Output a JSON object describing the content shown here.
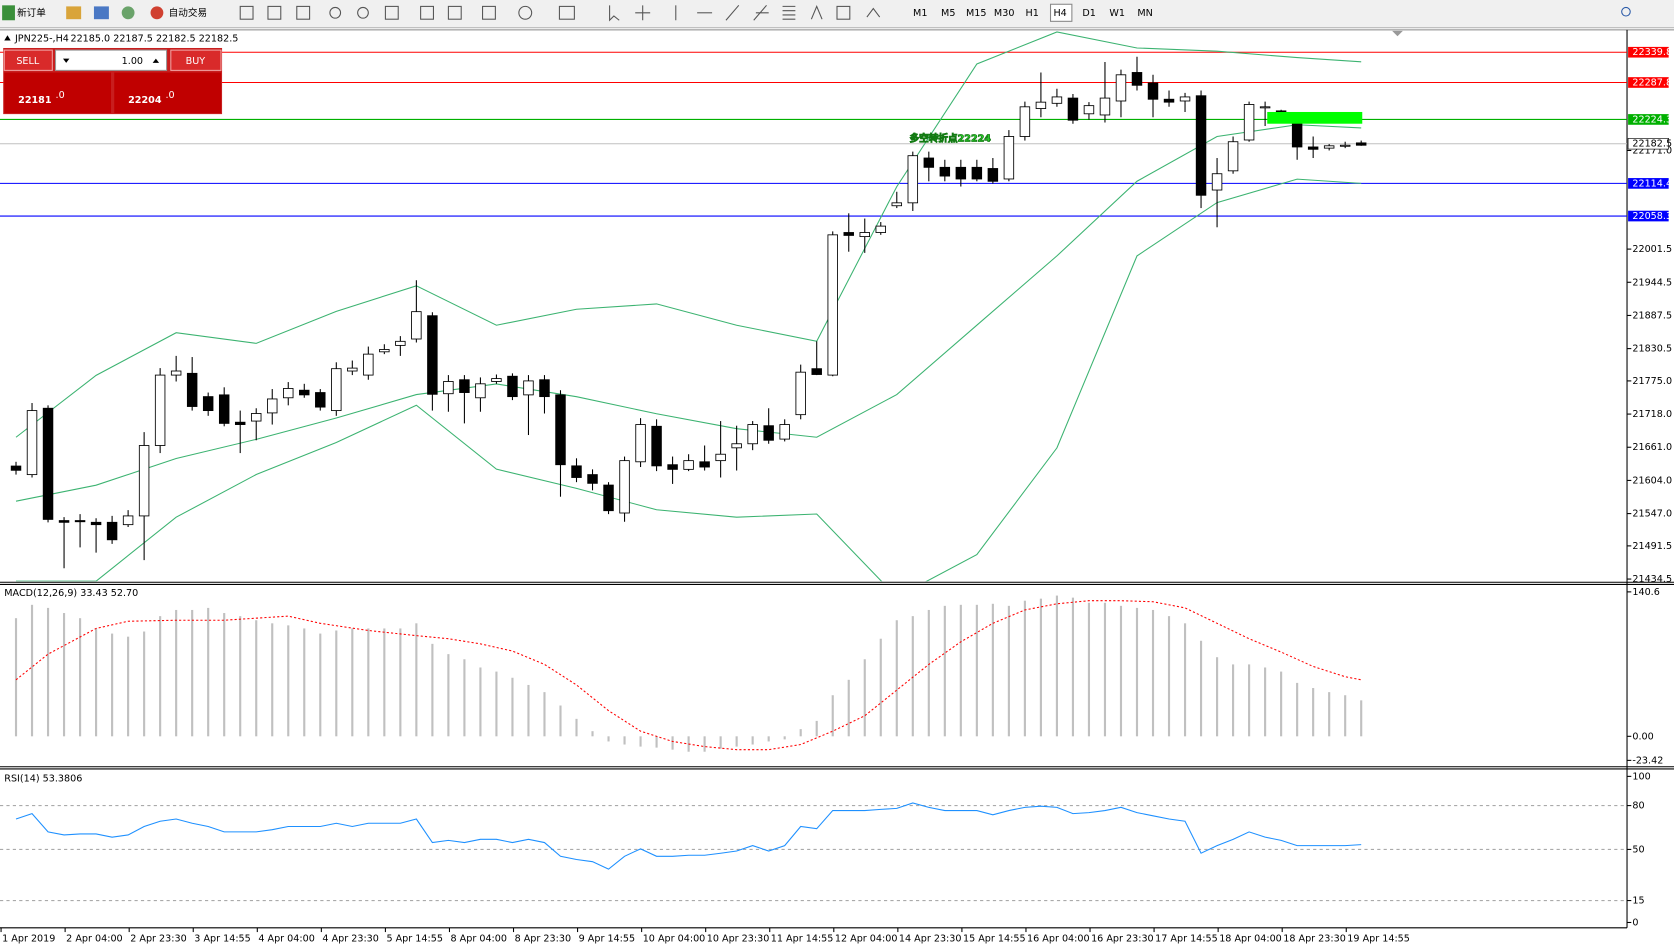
{
  "toolbar": {
    "new_order": "新订单",
    "auto_trading": "自动交易",
    "timeframes": [
      "M1",
      "M5",
      "M15",
      "M30",
      "H1",
      "H4",
      "D1",
      "W1",
      "MN"
    ],
    "active_timeframe": "H4"
  },
  "trade_panel": {
    "sell": "SELL",
    "buy": "BUY",
    "lot": "1.00",
    "bid": "22181",
    "bid_big": ".0",
    "ask": "22204",
    "ask_big": ".0"
  },
  "chart_data": [
    {
      "type": "candlestick",
      "title": "JPN225-,H4",
      "ohlc": "22185.0 22187.5 22182.5 22182.5",
      "categories": [
        "1 Apr 2019",
        null,
        null,
        null,
        "2 Apr 04:00",
        null,
        null,
        null,
        "2 Apr 23:30",
        null,
        null,
        null,
        "3 Apr 14:55",
        null,
        null,
        null,
        "4 Apr 04:00",
        null,
        null,
        null,
        "4 Apr 23:30",
        null,
        null,
        null,
        "5 Apr 14:55",
        null,
        null,
        null,
        "8 Apr 04:00",
        null,
        null,
        null,
        "8 Apr 23:30",
        null,
        null,
        null,
        "9 Apr 14:55",
        null,
        null,
        null,
        "10 Apr 04:00",
        null,
        null,
        null,
        "10 Apr 23:30",
        null,
        null,
        null,
        "11 Apr 14:55",
        null,
        null,
        null,
        "12 Apr 04:00",
        null,
        null,
        null,
        "14 Apr 23:30",
        null,
        null,
        null,
        "15 Apr 14:55",
        null,
        null,
        null,
        "16 Apr 04:00",
        null,
        null,
        null,
        "16 Apr 23:30",
        null,
        null,
        null,
        "17 Apr 14:55",
        null,
        null,
        null,
        "18 Apr 04:00",
        null,
        null,
        null,
        "18 Apr 23:30",
        null,
        null,
        null,
        "19 Apr 14:55"
      ],
      "open": [
        21628.7,
        21614,
        21728,
        21535,
        21535,
        21532,
        21532,
        21528,
        21543,
        21664,
        21785,
        21788,
        21748,
        21751,
        21704,
        21706,
        21720,
        21746,
        21759,
        21755,
        21724,
        21792,
        21785,
        21825,
        21836,
        21847,
        21887,
        21753,
        21777,
        21746,
        21774,
        21783,
        21751,
        21777,
        21751,
        21629,
        21614,
        21596,
        21548,
        21636,
        21697,
        21631,
        21623,
        21636,
        21638,
        21660,
        21667,
        21698,
        21675,
        21717,
        21796,
        21785,
        22030,
        22023,
        22030,
        22076,
        22081,
        22158,
        22142,
        22142,
        22142,
        22140,
        22122,
        22195,
        22243,
        22252,
        22261,
        22234,
        22232,
        22256,
        22305,
        22287,
        22259,
        22256,
        22265,
        22103,
        22136,
        22189,
        22246,
        22239,
        22219,
        22177,
        22175,
        22179,
        22184
      ],
      "high": [
        21636,
        21737,
        21733,
        21541,
        21546,
        21539,
        21543,
        21553,
        21687,
        21797,
        21818,
        21816,
        21755,
        21764,
        21724,
        21728,
        21761,
        21773,
        21770,
        21761,
        21807,
        21810,
        21834,
        21838,
        21852,
        21948,
        21893,
        21785,
        21785,
        21781,
        21786,
        21788,
        21785,
        21785,
        21759,
        21642,
        21623,
        21601,
        21645,
        21711,
        21709,
        21645,
        21649,
        21664,
        21706,
        21698,
        21706,
        21728,
        21709,
        21803,
        21843,
        22032,
        22063,
        22054,
        22048,
        22100,
        22169,
        22169,
        22155,
        22155,
        22155,
        22158,
        22206,
        22255,
        22305,
        22277,
        22268,
        22254,
        22323,
        22310,
        22332,
        22301,
        22274,
        22270,
        22274,
        22158,
        22195,
        22255,
        22255,
        22241,
        22228,
        22195,
        22182,
        22186,
        22188
      ],
      "low": [
        21614,
        21609,
        21532,
        21453,
        21489,
        21480,
        21495,
        21524,
        21467,
        21651,
        21774,
        21724,
        21715,
        21697,
        21651,
        21673,
        21700,
        21733,
        21746,
        21724,
        21715,
        21785,
        21777,
        21821,
        21818,
        21841,
        21724,
        21722,
        21702,
        21722,
        21770,
        21742,
        21682,
        21719,
        21576,
        21601,
        21587,
        21546,
        21533,
        21627,
        21620,
        21598,
        21620,
        21621,
        21609,
        21621,
        21656,
        21667,
        21671,
        21709,
        21785,
        21783,
        21997,
        21995,
        22026,
        22072,
        22067,
        22118,
        22118,
        22109,
        22118,
        22114,
        22118,
        22188,
        22228,
        22246,
        22217,
        22224,
        22219,
        22228,
        22274,
        22228,
        22246,
        22237,
        22072,
        22039,
        22131,
        22186,
        22213,
        22232,
        22155,
        22158,
        22171,
        22175,
        22179
      ],
      "close": [
        21621.4,
        21724,
        21537,
        21532,
        21533,
        21528,
        21502,
        21543,
        21664,
        21785,
        21792,
        21731,
        21724,
        21702,
        21700,
        21719,
        21744,
        21762,
        21751,
        21730,
        21796,
        21797,
        21821,
        21829,
        21843,
        21894,
        21752,
        21774,
        21755,
        21770,
        21779,
        21748,
        21775,
        21748,
        21631,
        21609,
        21599,
        21552,
        21638,
        21700,
        21629,
        21623,
        21638,
        21627,
        21649,
        21667,
        21700,
        21673,
        21700,
        21790,
        21786,
        22026,
        22025,
        22030,
        22041,
        22081,
        22162,
        22142,
        22127,
        22122,
        22122,
        22118,
        22195,
        22246,
        22254,
        22263,
        22223,
        22248,
        22261,
        22301,
        22283,
        22259,
        22254,
        22263,
        22094,
        22131,
        22186,
        22250,
        22246,
        22237,
        22177,
        22173,
        22179,
        22180,
        22180
      ],
      "up_color": "#ffffff",
      "down_color": "#000000",
      "bands_x": [
        0,
        5,
        10,
        15,
        20,
        25,
        30,
        35,
        40,
        45,
        50,
        55,
        60,
        65,
        70,
        75,
        80,
        84
      ],
      "bands": [
        {
          "color": "#3cb371",
          "values": [
            21678.2,
            21784.5,
            21857.8,
            21839.5,
            21894.5,
            21938.4,
            21870.7,
            21898.1,
            21907.3,
            21870.7,
            21843.2,
            22108.9,
            22319.6,
            22374.6,
            22347.1,
            22341.6,
            22330.6,
            22323.3
          ]
        },
        {
          "color": "#3cb371",
          "values": [
            21568.3,
            21595.8,
            21641.6,
            21674.6,
            21711.2,
            21751.5,
            21769.8,
            21747.9,
            21718.5,
            21692.9,
            21678.2,
            21751.5,
            21870.7,
            21989.8,
            22118.1,
            22195.0,
            22215.2,
            22209.7
          ]
        },
        {
          "color": "#3cb371",
          "values": [
            21430.8,
            21430.8,
            21540.8,
            21614.1,
            21669.1,
            21733.2,
            21623.3,
            21590.3,
            21553.6,
            21540.8,
            21546.3,
            21403.4,
            21476.6,
            21659.9,
            21989.8,
            22081.4,
            22121.7,
            22114.4
          ]
        }
      ],
      "levels": [
        {
          "value": 22339.8,
          "color": "#ff0000"
        },
        {
          "value": 22287.8,
          "color": "#ff0000"
        },
        {
          "value": 22224.3,
          "color": "#00b000"
        },
        {
          "value": 22114.4,
          "color": "#0000ff"
        },
        {
          "value": 22058.3,
          "color": "#0000ff"
        }
      ],
      "last_price": 22182.5,
      "annotation": "多空转折点22224",
      "ylim": [
        21430.8,
        22376.4
      ],
      "yticks": [
        {
          "value": 22171,
          "label": "22171.0"
        },
        22001.5,
        21944.5,
        21887.5,
        21830.5,
        {
          "value": 21775,
          "label": "21775.0"
        },
        {
          "value": 21718,
          "label": "21718.0"
        },
        {
          "value": 21661,
          "label": "21661.0"
        },
        {
          "value": 21604,
          "label": "21604.0"
        },
        {
          "value": 21547,
          "label": "21547.0"
        },
        21491.5,
        21434.5
      ]
    },
    {
      "type": "macd",
      "title": "MACD(12,26,9) 33.43 52.70",
      "color": "#c0c0c0",
      "values": [
        115,
        128,
        125,
        120,
        115,
        105,
        100,
        97,
        102,
        117,
        123,
        123,
        125,
        120,
        117,
        113,
        110,
        108,
        105,
        100,
        103,
        105,
        105,
        105,
        105,
        110,
        90,
        80,
        75,
        67,
        63,
        57,
        50,
        43,
        30,
        17,
        5,
        -5,
        -8,
        -10,
        -11,
        -13,
        -15,
        -15,
        -12,
        -10,
        -8,
        -5,
        -3,
        7,
        15,
        40,
        55,
        75,
        95,
        113,
        117,
        123,
        127,
        128,
        128,
        129,
        127,
        132,
        134,
        137,
        135,
        130,
        130,
        127,
        125,
        123,
        117,
        110,
        93,
        77,
        70,
        70,
        67,
        63,
        52,
        47,
        43,
        40,
        35
      ],
      "signal": {
        "color": "#ff0000",
        "x": [
          0,
          2,
          5,
          7,
          10,
          13,
          17,
          19,
          22,
          25,
          27,
          29,
          31,
          33,
          35,
          37,
          39,
          41,
          43,
          45,
          47,
          49,
          51,
          53,
          55,
          57,
          59,
          61,
          63,
          65,
          67,
          69,
          71,
          73,
          75,
          77,
          79,
          81,
          83,
          84
        ],
        "values": [
          55,
          80,
          105,
          112,
          113,
          113,
          117,
          110,
          103,
          98,
          95,
          90,
          83,
          70,
          50,
          25,
          5,
          -5,
          -10,
          -13,
          -13,
          -8,
          5,
          20,
          45,
          70,
          92,
          110,
          123,
          129,
          132,
          132,
          131,
          125,
          110,
          95,
          82,
          68,
          58,
          55
        ]
      },
      "ylim": [
        -23.42,
        140.6
      ],
      "yticks": [
        140.6,
        {
          "value": 0,
          "label": "0.00"
        },
        -23.42
      ]
    },
    {
      "type": "line",
      "title": "RSI(14) 53.3806",
      "color": "#1e90ff",
      "values": [
        70.8,
        74.5,
        62.0,
        59.9,
        60.6,
        60.6,
        58.4,
        59.9,
        65.7,
        69.3,
        70.8,
        67.9,
        65.7,
        62.0,
        62.0,
        62.0,
        63.5,
        65.7,
        65.7,
        65.7,
        67.9,
        65.7,
        67.9,
        67.9,
        67.9,
        70.8,
        54.7,
        56.2,
        54.7,
        56.9,
        56.9,
        54.7,
        56.9,
        54.7,
        45.3,
        43.1,
        41.6,
        36.5,
        45.3,
        50.4,
        45.3,
        45.3,
        46.0,
        46.0,
        47.4,
        48.9,
        52.6,
        48.9,
        52.6,
        65.7,
        64.2,
        76.6,
        76.6,
        76.6,
        77.4,
        78.1,
        81.8,
        78.8,
        76.6,
        76.6,
        76.6,
        73.7,
        76.6,
        78.8,
        79.6,
        78.8,
        74.5,
        75.2,
        76.6,
        78.8,
        75.2,
        73.0,
        70.8,
        69.3,
        47.4,
        52.6,
        56.9,
        62.0,
        58.4,
        56.2,
        52.6,
        52.6,
        52.6,
        52.6,
        53.3
      ],
      "ylim": [
        0,
        100
      ],
      "yticks": [
        100,
        80,
        50,
        15,
        0
      ]
    }
  ]
}
